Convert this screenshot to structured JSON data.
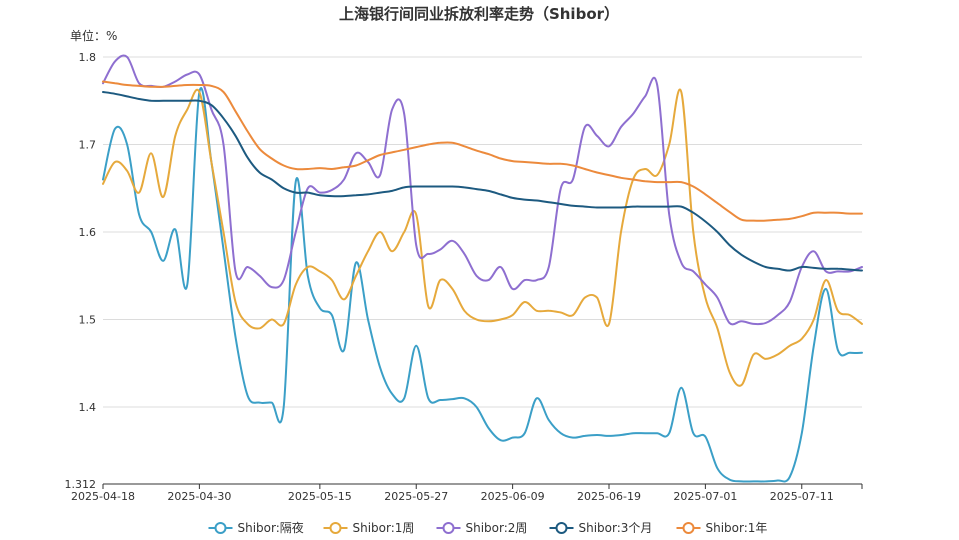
{
  "chart_data": {
    "type": "line",
    "title": "上海银行间同业拆放利率走势（Shibor）",
    "unit_label": "单位：%",
    "xlabel": "",
    "ylabel": "",
    "ylim": [
      1.312,
      1.8
    ],
    "y_ticks": [
      "1.312",
      "1.4",
      "1.5",
      "1.6",
      "1.7",
      "1.8"
    ],
    "y_tick_values": [
      1.312,
      1.4,
      1.5,
      1.6,
      1.7,
      1.8
    ],
    "x_ticks": [
      "2025-04-18",
      "2025-04-30",
      "2025-05-15",
      "2025-05-27",
      "2025-06-09",
      "2025-06-19",
      "2025-07-01",
      "2025-07-11"
    ],
    "x_tick_index": [
      0,
      8,
      18,
      26,
      34,
      42,
      50,
      58
    ],
    "x_count": 64,
    "grid": true,
    "legend_position": "bottom",
    "series": [
      {
        "name": "Shibor:隔夜",
        "color": "#3b9fc7",
        "values": [
          1.66,
          1.718,
          1.7,
          1.62,
          1.6,
          1.567,
          1.603,
          1.54,
          1.76,
          1.68,
          1.58,
          1.48,
          1.413,
          1.405,
          1.405,
          1.4,
          1.658,
          1.55,
          1.513,
          1.505,
          1.465,
          1.565,
          1.5,
          1.445,
          1.415,
          1.41,
          1.47,
          1.41,
          1.408,
          1.409,
          1.41,
          1.4,
          1.376,
          1.362,
          1.365,
          1.37,
          1.41,
          1.385,
          1.37,
          1.365,
          1.367,
          1.368,
          1.367,
          1.368,
          1.37,
          1.37,
          1.37,
          1.37,
          1.422,
          1.37,
          1.366,
          1.33,
          1.317,
          1.315,
          1.315,
          1.315,
          1.316,
          1.32,
          1.37,
          1.47,
          1.535,
          1.465,
          1.462,
          1.462
        ]
      },
      {
        "name": "Shibor:1周",
        "color": "#e6a93c",
        "values": [
          1.655,
          1.68,
          1.67,
          1.645,
          1.69,
          1.64,
          1.71,
          1.74,
          1.76,
          1.68,
          1.6,
          1.52,
          1.495,
          1.49,
          1.5,
          1.495,
          1.54,
          1.56,
          1.555,
          1.545,
          1.523,
          1.55,
          1.578,
          1.6,
          1.578,
          1.6,
          1.62,
          1.515,
          1.545,
          1.535,
          1.51,
          1.5,
          1.498,
          1.5,
          1.505,
          1.52,
          1.51,
          1.51,
          1.508,
          1.505,
          1.525,
          1.525,
          1.495,
          1.6,
          1.66,
          1.672,
          1.665,
          1.7,
          1.76,
          1.6,
          1.525,
          1.49,
          1.44,
          1.425,
          1.46,
          1.455,
          1.46,
          1.47,
          1.478,
          1.5,
          1.545,
          1.51,
          1.505,
          1.495
        ]
      },
      {
        "name": "Shibor:2周",
        "color": "#8e6fd0",
        "values": [
          1.77,
          1.795,
          1.8,
          1.77,
          1.767,
          1.766,
          1.772,
          1.78,
          1.78,
          1.74,
          1.7,
          1.555,
          1.56,
          1.55,
          1.537,
          1.545,
          1.6,
          1.65,
          1.645,
          1.648,
          1.66,
          1.69,
          1.68,
          1.665,
          1.74,
          1.735,
          1.585,
          1.575,
          1.58,
          1.59,
          1.575,
          1.55,
          1.545,
          1.56,
          1.535,
          1.545,
          1.545,
          1.56,
          1.65,
          1.66,
          1.72,
          1.71,
          1.698,
          1.72,
          1.735,
          1.755,
          1.768,
          1.62,
          1.565,
          1.555,
          1.54,
          1.525,
          1.496,
          1.498,
          1.495,
          1.496,
          1.505,
          1.52,
          1.56,
          1.578,
          1.555,
          1.555,
          1.555,
          1.56
        ]
      },
      {
        "name": "Shibor:3个月",
        "color": "#1d5a80",
        "values": [
          1.76,
          1.758,
          1.755,
          1.752,
          1.75,
          1.75,
          1.75,
          1.75,
          1.75,
          1.745,
          1.73,
          1.71,
          1.685,
          1.668,
          1.66,
          1.65,
          1.645,
          1.645,
          1.642,
          1.641,
          1.641,
          1.642,
          1.643,
          1.645,
          1.647,
          1.651,
          1.652,
          1.652,
          1.652,
          1.652,
          1.651,
          1.649,
          1.647,
          1.643,
          1.639,
          1.637,
          1.636,
          1.634,
          1.632,
          1.63,
          1.629,
          1.628,
          1.628,
          1.628,
          1.629,
          1.629,
          1.629,
          1.629,
          1.629,
          1.622,
          1.612,
          1.6,
          1.585,
          1.574,
          1.566,
          1.56,
          1.558,
          1.556,
          1.56,
          1.559,
          1.558,
          1.558,
          1.557,
          1.556
        ]
      },
      {
        "name": "Shibor:1年",
        "color": "#ec8a3c",
        "values": [
          1.772,
          1.77,
          1.768,
          1.767,
          1.766,
          1.766,
          1.767,
          1.768,
          1.768,
          1.767,
          1.76,
          1.738,
          1.715,
          1.695,
          1.684,
          1.676,
          1.672,
          1.672,
          1.673,
          1.672,
          1.674,
          1.676,
          1.682,
          1.688,
          1.691,
          1.694,
          1.697,
          1.7,
          1.702,
          1.702,
          1.698,
          1.693,
          1.689,
          1.684,
          1.681,
          1.68,
          1.679,
          1.678,
          1.678,
          1.676,
          1.672,
          1.668,
          1.665,
          1.662,
          1.66,
          1.658,
          1.657,
          1.657,
          1.657,
          1.652,
          1.643,
          1.633,
          1.623,
          1.614,
          1.613,
          1.613,
          1.614,
          1.615,
          1.618,
          1.622,
          1.622,
          1.622,
          1.621,
          1.621
        ]
      }
    ]
  }
}
